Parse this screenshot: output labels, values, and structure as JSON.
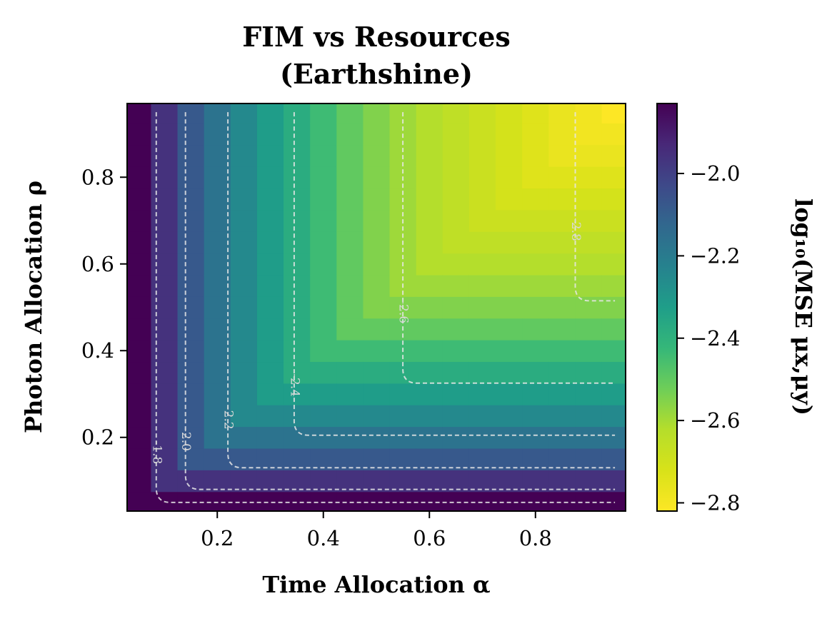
{
  "chart_data": {
    "type": "heatmap",
    "title_lines": [
      "FIM vs Resources",
      "(Earthshine)"
    ],
    "xlabel": "Time Allocation α",
    "ylabel": "Photon Allocation ρ",
    "colorbar_label": "log₁₀(MSE μx,μy)",
    "xlim": [
      0.03,
      0.97
    ],
    "ylim": [
      0.03,
      0.97
    ],
    "grid_n": 19,
    "grid_start": 0.05,
    "grid_step": 0.05,
    "x_ticks": [
      0.2,
      0.4,
      0.6,
      0.8
    ],
    "x_tick_labels": [
      "0.2",
      "0.4",
      "0.6",
      "0.8"
    ],
    "y_ticks": [
      0.2,
      0.4,
      0.6,
      0.8
    ],
    "y_tick_labels": [
      "0.2",
      "0.4",
      "0.6",
      "0.8"
    ],
    "z_range": [
      -1.83,
      -2.82
    ],
    "colorbar_ticks": [
      -2.0,
      -2.2,
      -2.4,
      -2.6,
      -2.8
    ],
    "colorbar_tick_labels": [
      "−2.0",
      "−2.2",
      "−2.4",
      "−2.6",
      "−2.8"
    ],
    "colormap": "viridis_r",
    "cell_values": [
      -1.83,
      -1.96,
      -2.08,
      -2.17,
      -2.25,
      -2.32,
      -2.38,
      -2.44,
      -2.5,
      -2.55,
      -2.59,
      -2.62,
      -2.65,
      -2.68,
      -2.71,
      -2.74,
      -2.77,
      -2.79,
      -2.82
    ],
    "contours": [
      {
        "label": "-1.8",
        "corner": [
          0.085,
          0.05
        ]
      },
      {
        "label": "-2.0",
        "corner": [
          0.14,
          0.08
        ]
      },
      {
        "label": "-2.2",
        "corner": [
          0.22,
          0.13
        ]
      },
      {
        "label": "-2.4",
        "corner": [
          0.345,
          0.205
        ]
      },
      {
        "label": "-2.6",
        "corner": [
          0.55,
          0.325
        ]
      },
      {
        "label": "-2.8",
        "corner": [
          0.875,
          0.515
        ]
      }
    ],
    "contour_style": "dashed",
    "grid": false
  }
}
